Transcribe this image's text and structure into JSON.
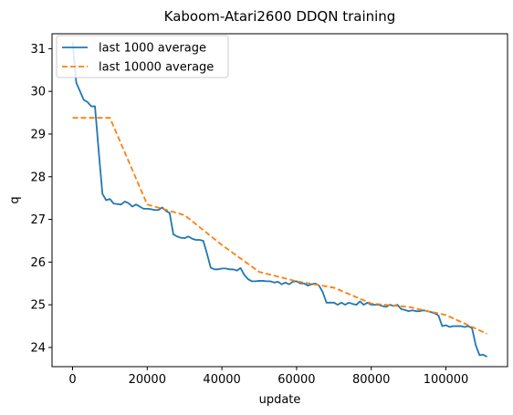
{
  "chart_data": {
    "type": "line",
    "title": "Kaboom-Atari2600 DDQN training",
    "xlabel": "update",
    "ylabel": "q",
    "xlim": [
      -5500,
      116500
    ],
    "ylim": [
      23.55,
      31.35
    ],
    "xticks": [
      0,
      20000,
      40000,
      60000,
      80000,
      100000
    ],
    "yticks": [
      24,
      25,
      26,
      27,
      28,
      29,
      30,
      31
    ],
    "grid": false,
    "legend_position": "top-left",
    "series": [
      {
        "name": "last 1000 average",
        "color": "#1f77b4",
        "style": "solid",
        "x": [
          0,
          1000,
          2000,
          3000,
          4000,
          5000,
          6000,
          7000,
          8000,
          9000,
          10000,
          11000,
          12000,
          13000,
          14000,
          15000,
          16000,
          17000,
          18000,
          19000,
          20000,
          21000,
          22000,
          23000,
          24000,
          25000,
          26000,
          27000,
          28000,
          29000,
          30000,
          31000,
          32000,
          33000,
          34000,
          35000,
          36000,
          37000,
          38000,
          39000,
          40000,
          41000,
          42000,
          43000,
          44000,
          45000,
          46000,
          47000,
          48000,
          49000,
          50000,
          51000,
          52000,
          53000,
          54000,
          55000,
          56000,
          57000,
          58000,
          59000,
          60000,
          61000,
          62000,
          63000,
          64000,
          65000,
          66000,
          67000,
          68000,
          69000,
          70000,
          71000,
          72000,
          73000,
          74000,
          75000,
          76000,
          77000,
          78000,
          79000,
          80000,
          81000,
          82000,
          83000,
          84000,
          85000,
          86000,
          87000,
          88000,
          89000,
          90000,
          91000,
          92000,
          93000,
          94000,
          95000,
          96000,
          97000,
          98000,
          99000,
          100000,
          101000,
          102000,
          103000,
          104000,
          105000,
          106000,
          107000,
          108000,
          109000,
          110000,
          111000
        ],
        "y": [
          31.15,
          30.2,
          30.0,
          29.8,
          29.75,
          29.65,
          29.65,
          28.6,
          27.6,
          27.45,
          27.48,
          27.37,
          27.36,
          27.35,
          27.42,
          27.38,
          27.3,
          27.35,
          27.3,
          27.25,
          27.25,
          27.24,
          27.22,
          27.22,
          27.28,
          27.2,
          27.15,
          26.65,
          26.6,
          26.57,
          26.56,
          26.6,
          26.55,
          26.52,
          26.52,
          26.5,
          26.2,
          25.87,
          25.83,
          25.83,
          25.85,
          25.85,
          25.83,
          25.83,
          25.8,
          25.86,
          25.7,
          25.6,
          25.55,
          25.55,
          25.56,
          25.56,
          25.55,
          25.55,
          25.52,
          25.54,
          25.48,
          25.52,
          25.48,
          25.54,
          25.55,
          25.5,
          25.5,
          25.45,
          25.48,
          25.5,
          25.45,
          25.3,
          25.05,
          25.05,
          25.05,
          25.0,
          25.05,
          25.0,
          25.05,
          25.02,
          25.0,
          25.08,
          25.0,
          25.05,
          25.0,
          25.0,
          25.0,
          24.97,
          24.95,
          25.0,
          24.97,
          25.0,
          24.9,
          24.88,
          24.85,
          24.87,
          24.85,
          24.85,
          24.87,
          24.85,
          24.83,
          24.8,
          24.75,
          24.5,
          24.52,
          24.48,
          24.5,
          24.5,
          24.5,
          24.48,
          24.5,
          24.45,
          24.05,
          23.82,
          23.83,
          23.78
        ]
      },
      {
        "name": "last 10000 average",
        "color": "#ff7f0e",
        "style": "dashed",
        "x": [
          0,
          10000,
          20000,
          30000,
          40000,
          50000,
          60000,
          70000,
          80000,
          90000,
          100000,
          111000
        ],
        "y": [
          29.38,
          29.38,
          27.35,
          27.1,
          26.4,
          25.77,
          25.55,
          25.4,
          25.03,
          24.95,
          24.76,
          24.32
        ]
      }
    ]
  }
}
